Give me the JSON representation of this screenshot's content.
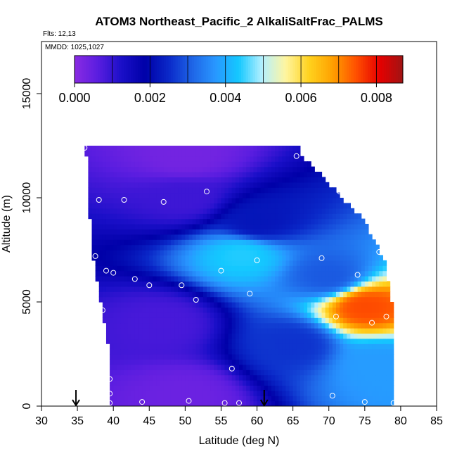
{
  "chart_data": {
    "type": "heatmap",
    "title": "ATOM3 Northeast_Pacific_2 AlkaliSaltFrac_PALMS",
    "flights_text": "Flts: 12,13",
    "mmdd_text": "MMDD: 1025,1027",
    "xlabel": "Latitude (deg N)",
    "ylabel": "Altitude (m)",
    "xlim": [
      30,
      85
    ],
    "ylim": [
      0,
      17500
    ],
    "x_ticks": [
      "30",
      "35",
      "40",
      "45",
      "50",
      "55",
      "60",
      "65",
      "70",
      "75",
      "80",
      "85"
    ],
    "y_ticks": [
      "0",
      "5000",
      "10000",
      "15000"
    ],
    "colorbar": {
      "range": [
        0,
        0.0087
      ],
      "ticks": [
        "0.000",
        "0.002",
        "0.004",
        "0.006",
        "0.008"
      ],
      "tick_values": [
        0,
        0.002,
        0.004,
        0.006,
        0.008
      ],
      "colors": [
        "#8a2be2",
        "#5a1de0",
        "#1a0fc8",
        "#0000a8",
        "#0a28c8",
        "#1e64e6",
        "#2896ff",
        "#14c8ff",
        "#b4f0ff",
        "#fff5a0",
        "#ffd21e",
        "#ffa000",
        "#ff5000",
        "#e60000",
        "#a01414"
      ]
    },
    "coverage": [
      {
        "alt": 12500,
        "lat_min": 36,
        "lat_max": 65.5
      },
      {
        "alt": 12000,
        "lat_min": 36.5,
        "lat_max": 66
      },
      {
        "alt": 11000,
        "lat_min": 36.5,
        "lat_max": 69
      },
      {
        "alt": 10000,
        "lat_min": 36.5,
        "lat_max": 71.5
      },
      {
        "alt": 9000,
        "lat_min": 37,
        "lat_max": 74.5
      },
      {
        "alt": 8000,
        "lat_min": 37,
        "lat_max": 76
      },
      {
        "alt": 7000,
        "lat_min": 37.5,
        "lat_max": 77.5
      },
      {
        "alt": 6000,
        "lat_min": 38,
        "lat_max": 78
      },
      {
        "alt": 5000,
        "lat_min": 38.5,
        "lat_max": 78.5
      },
      {
        "alt": 4000,
        "lat_min": 39,
        "lat_max": 79
      },
      {
        "alt": 3000,
        "lat_min": 39.5,
        "lat_max": 79
      },
      {
        "alt": 0,
        "lat_min": 39.5,
        "lat_max": 79
      }
    ],
    "fraction_features": [
      {
        "lat": 50,
        "alt": 12000,
        "value": 0.0003
      },
      {
        "lat": 50,
        "alt": 10000,
        "value": 0.0009
      },
      {
        "lat": 60,
        "alt": 8800,
        "value": 0.0022
      },
      {
        "lat": 58,
        "alt": 7300,
        "value": 0.0044
      },
      {
        "lat": 70,
        "alt": 6200,
        "value": 0.003
      },
      {
        "lat": 75,
        "alt": 4800,
        "value": 0.0075
      },
      {
        "lat": 47,
        "alt": 4000,
        "value": 0.0008
      },
      {
        "lat": 65,
        "alt": 3000,
        "value": 0.0026
      },
      {
        "lat": 77,
        "alt": 2000,
        "value": 0.0038
      },
      {
        "lat": 50,
        "alt": 500,
        "value": 0.0004
      }
    ],
    "sample_points": [
      {
        "lat": 36,
        "alt": 12400
      },
      {
        "lat": 65.5,
        "alt": 12000
      },
      {
        "lat": 71.5,
        "alt": 10300
      },
      {
        "lat": 53,
        "alt": 10300
      },
      {
        "lat": 38,
        "alt": 9900
      },
      {
        "lat": 41.5,
        "alt": 9900
      },
      {
        "lat": 47,
        "alt": 9800
      },
      {
        "lat": 37.5,
        "alt": 7200
      },
      {
        "lat": 60,
        "alt": 7000
      },
      {
        "lat": 69,
        "alt": 7100
      },
      {
        "lat": 77,
        "alt": 7400
      },
      {
        "lat": 39,
        "alt": 6500
      },
      {
        "lat": 40,
        "alt": 6400
      },
      {
        "lat": 43,
        "alt": 6100
      },
      {
        "lat": 45,
        "alt": 5800
      },
      {
        "lat": 49.5,
        "alt": 5800
      },
      {
        "lat": 55,
        "alt": 6500
      },
      {
        "lat": 74,
        "alt": 6300
      },
      {
        "lat": 59,
        "alt": 5400
      },
      {
        "lat": 51.5,
        "alt": 5100
      },
      {
        "lat": 38.5,
        "alt": 4600
      },
      {
        "lat": 71,
        "alt": 4300
      },
      {
        "lat": 76,
        "alt": 4000
      },
      {
        "lat": 78,
        "alt": 4300
      },
      {
        "lat": 56.5,
        "alt": 1800
      },
      {
        "lat": 39.5,
        "alt": 1300
      },
      {
        "lat": 39.5,
        "alt": 600
      },
      {
        "lat": 70.5,
        "alt": 500
      },
      {
        "lat": 39.5,
        "alt": 150
      },
      {
        "lat": 44,
        "alt": 200
      },
      {
        "lat": 50.5,
        "alt": 250
      },
      {
        "lat": 55.5,
        "alt": 150
      },
      {
        "lat": 57.5,
        "alt": 150
      },
      {
        "lat": 75,
        "alt": 200
      },
      {
        "lat": 79,
        "alt": 150
      }
    ],
    "arrows": [
      {
        "lat": 34.8,
        "alt": 0
      },
      {
        "lat": 61,
        "alt": 0
      }
    ]
  }
}
